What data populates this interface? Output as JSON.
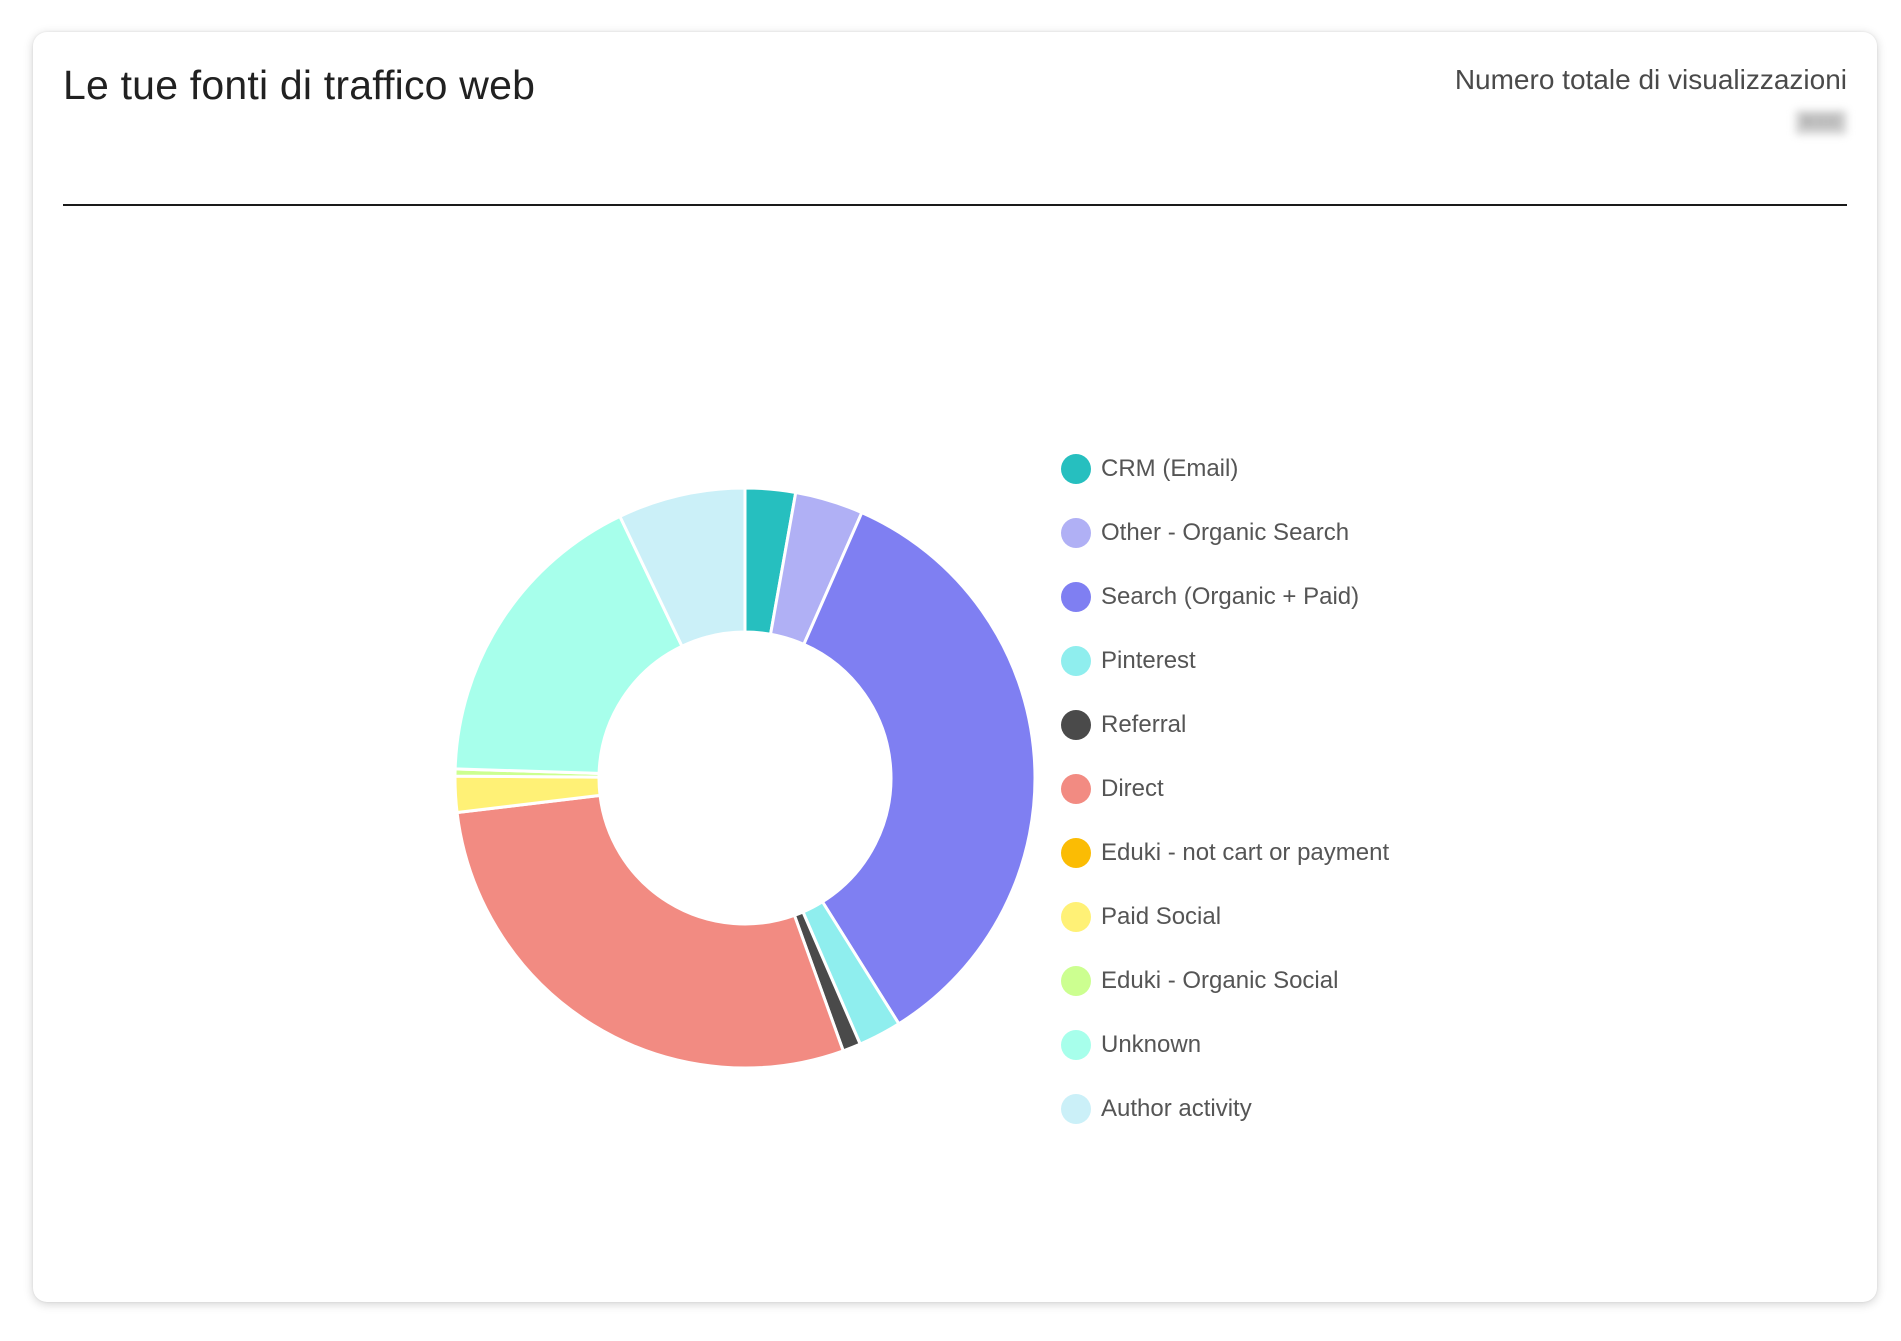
{
  "card": {
    "title": "Le tue fonti di traffico web",
    "total_label": "Numero totale di visualizzazioni",
    "total_value": "8000"
  },
  "chart_data": {
    "type": "pie",
    "style": "donut",
    "legend_position": "right",
    "categories": [
      "CRM (Email)",
      "Other - Organic Search",
      "Search (Organic + Paid)",
      "Pinterest",
      "Referral",
      "Direct",
      "Eduki - not cart or payment",
      "Paid Social",
      "Eduki - Organic Social",
      "Unknown",
      "Author activity"
    ],
    "values": [
      2.8,
      3.8,
      34.5,
      2.4,
      1.0,
      28.6,
      0.0,
      2.0,
      0.4,
      17.4,
      7.1
    ],
    "colors": [
      "#26bfbf",
      "#b0b0f5",
      "#7f7ff2",
      "#8feeee",
      "#4a4a4a",
      "#f28b82",
      "#fbbc04",
      "#fff176",
      "#ccff90",
      "#a7ffeb",
      "#cbf0f8"
    ]
  }
}
